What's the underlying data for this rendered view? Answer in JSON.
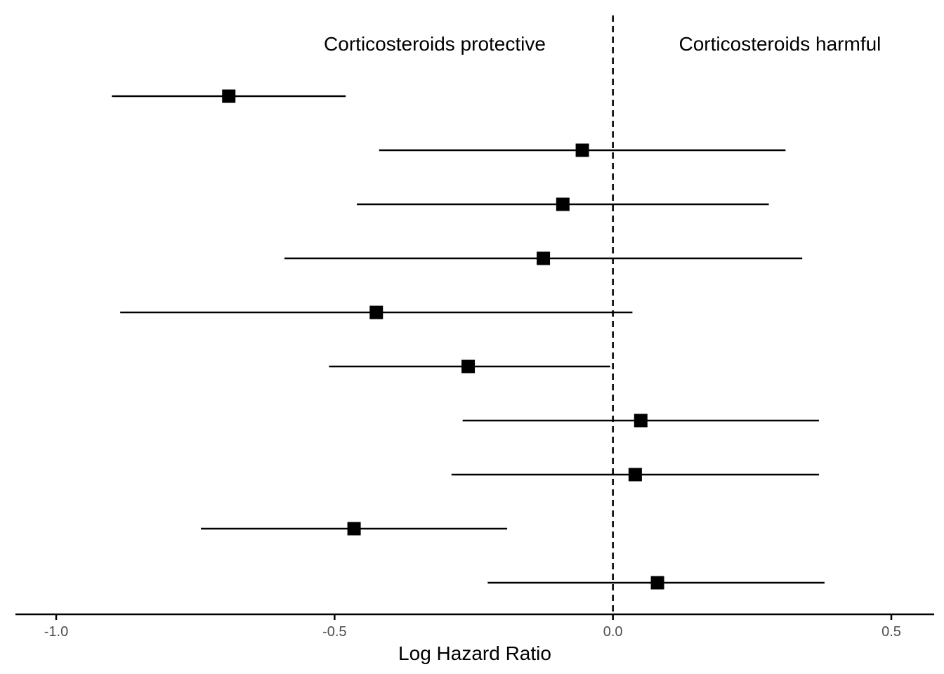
{
  "chart_data": {
    "type": "scatter",
    "subtype": "forest-plot",
    "title": "",
    "xlabel": "Log Hazard Ratio",
    "ylabel": "",
    "xlim": [
      -1.0,
      0.5
    ],
    "x_ticks": [
      "-1.0",
      "-0.5",
      "0.0",
      "0.5"
    ],
    "x_tick_values": [
      -1.0,
      -0.5,
      0.0,
      0.5
    ],
    "reference_line": {
      "x": 0.0,
      "style": "dashed"
    },
    "annotations": [
      {
        "text": "Corticosteroids protective",
        "x": -0.32
      },
      {
        "text": "Corticosteroids harmful",
        "x": 0.3
      }
    ],
    "points": [
      {
        "estimate": -0.69,
        "lower": -0.9,
        "upper": -0.48
      },
      {
        "estimate": -0.055,
        "lower": -0.42,
        "upper": 0.31
      },
      {
        "estimate": -0.09,
        "lower": -0.46,
        "upper": 0.28
      },
      {
        "estimate": -0.125,
        "lower": -0.59,
        "upper": 0.34
      },
      {
        "estimate": -0.425,
        "lower": -0.885,
        "upper": 0.035
      },
      {
        "estimate": -0.26,
        "lower": -0.51,
        "upper": -0.005
      },
      {
        "estimate": 0.05,
        "lower": -0.27,
        "upper": 0.37
      },
      {
        "estimate": 0.04,
        "lower": -0.29,
        "upper": 0.37
      },
      {
        "estimate": -0.465,
        "lower": -0.74,
        "upper": -0.19
      },
      {
        "estimate": 0.08,
        "lower": -0.225,
        "upper": 0.38
      }
    ],
    "grid": false,
    "marker": "square",
    "color": "#000000"
  }
}
